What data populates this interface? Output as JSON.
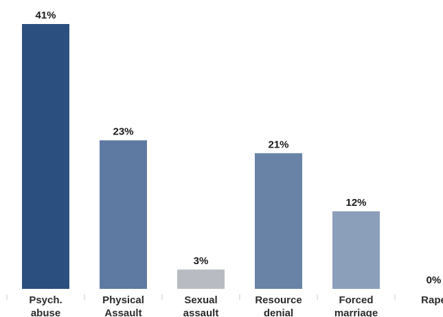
{
  "chart_data": {
    "type": "bar",
    "categories": [
      [
        "Psych.",
        "abuse"
      ],
      [
        "Physical",
        "Assault"
      ],
      [
        "Sexual",
        "assault"
      ],
      [
        "Resource",
        "denial"
      ],
      [
        "Forced",
        "marriage"
      ],
      [
        "Rape"
      ]
    ],
    "values": [
      41,
      23,
      3,
      21,
      12,
      0
    ],
    "value_labels": [
      "41%",
      "23%",
      "3%",
      "21%",
      "12%",
      "0%"
    ],
    "bar_colors": [
      "#2b4f7e",
      "#5e7aa3",
      "#b8bcc2",
      "#6883a6",
      "#8c9fba",
      "#8c9fba"
    ],
    "ylim": [
      0,
      41
    ],
    "grid": false,
    "title": "",
    "xlabel": "",
    "ylabel": ""
  }
}
